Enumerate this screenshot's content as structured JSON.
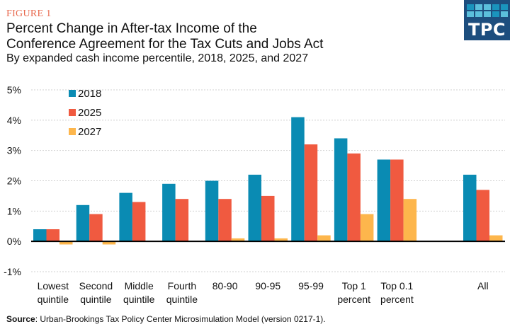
{
  "header": {
    "figure_label": "FIGURE 1",
    "title_line1": "Percent Change in After-tax Income of the",
    "title_line2": "Conference Agreement for the Tax Cuts and Jobs Act",
    "subtitle": "By expanded cash income percentile, 2018, 2025, and 2027"
  },
  "logo": {
    "text": "TPC",
    "background": "#1d4e7e",
    "grid_colors": [
      "#1a94bd",
      "#5bbfdb",
      "#5bbfdb",
      "#1a94bd",
      "#1a94bd",
      "#5bbfdb",
      "#5bbfdb",
      "#5bbfdb",
      "#1a94bd",
      "#5bbfdb"
    ]
  },
  "source": {
    "label": "Source",
    "text": ": Urban-Brookings Tax Policy Center Microsimulation Model (version 0217-1)."
  },
  "chart_data": {
    "type": "bar",
    "title": "Percent Change in After-tax Income of the Conference Agreement for the Tax Cuts and Jobs Act",
    "subtitle": "By expanded cash income percentile, 2018, 2025, and 2027",
    "xlabel": "",
    "ylabel": "",
    "ylim": [
      -1,
      5
    ],
    "yticks": [
      -1,
      0,
      1,
      2,
      3,
      4,
      5
    ],
    "ytick_labels": [
      "-1%",
      "0%",
      "1%",
      "2%",
      "3%",
      "4%",
      "5%"
    ],
    "grid": true,
    "legend_position": "top-left",
    "categories": [
      [
        "Lowest",
        "quintile"
      ],
      [
        "Second",
        "quintile"
      ],
      [
        "Middle",
        "quintile"
      ],
      [
        "Fourth",
        "quintile"
      ],
      [
        "80-90"
      ],
      [
        "90-95"
      ],
      [
        "95-99"
      ],
      [
        "Top 1",
        "percent"
      ],
      [
        "Top 0.1",
        "percent"
      ],
      [],
      [
        "All"
      ]
    ],
    "series": [
      {
        "name": "2018",
        "color": "#0a8bb3",
        "values": [
          0.4,
          1.2,
          1.6,
          1.9,
          2.0,
          2.2,
          4.1,
          3.4,
          2.7,
          null,
          2.2
        ]
      },
      {
        "name": "2025",
        "color": "#f05a40",
        "values": [
          0.4,
          0.9,
          1.3,
          1.4,
          1.4,
          1.5,
          3.2,
          2.9,
          2.7,
          null,
          1.7
        ]
      },
      {
        "name": "2027",
        "color": "#fdb64c",
        "values": [
          -0.1,
          -0.1,
          0.0,
          0.0,
          0.1,
          0.1,
          0.2,
          0.9,
          1.4,
          null,
          0.2
        ]
      }
    ]
  }
}
